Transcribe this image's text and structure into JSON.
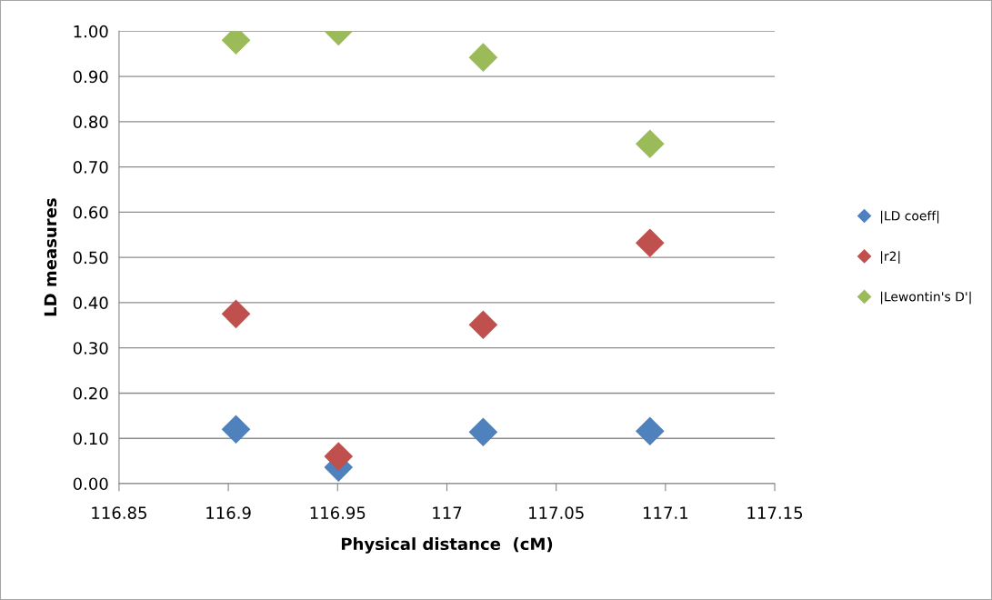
{
  "chart_data": {
    "type": "scatter",
    "xlabel": "Physical distance  (cM)",
    "ylabel": "LD measures",
    "x": [
      116.9035,
      116.9504,
      117.0166,
      117.0929
    ],
    "series": [
      {
        "name": "|LD coeff|",
        "color": "#4f81bd",
        "values": [
          0.12,
          0.036,
          0.114,
          0.116
        ]
      },
      {
        "name": "|r2|",
        "color": "#c0504d",
        "values": [
          0.375,
          0.06,
          0.351,
          0.532
        ]
      },
      {
        "name": "|Lewontin's D'|",
        "color": "#9bbb59",
        "values": [
          0.98,
          1.0,
          0.942,
          0.751
        ]
      }
    ],
    "xlim": [
      116.85,
      117.15
    ],
    "xticks": [
      116.85,
      116.9,
      116.95,
      117,
      117.05,
      117.1,
      117.15
    ],
    "ylim": [
      0,
      1
    ],
    "yticks": [
      {
        "value": 0,
        "label": "0.00"
      },
      {
        "value": 0.1,
        "label": "0.10"
      },
      {
        "value": 0.2,
        "label": "0.20"
      },
      {
        "value": 0.3,
        "label": "0.30"
      },
      {
        "value": 0.4,
        "label": "0.40"
      },
      {
        "value": 0.5,
        "label": "0.50"
      },
      {
        "value": 0.6,
        "label": "0.60"
      },
      {
        "value": 0.7,
        "label": "0.70"
      },
      {
        "value": 0.8,
        "label": "0.80"
      },
      {
        "value": 0.9,
        "label": "0.90"
      },
      {
        "value": 1,
        "label": "1.00"
      }
    ],
    "grid": "y",
    "legend": "right",
    "marker": "diamond"
  }
}
